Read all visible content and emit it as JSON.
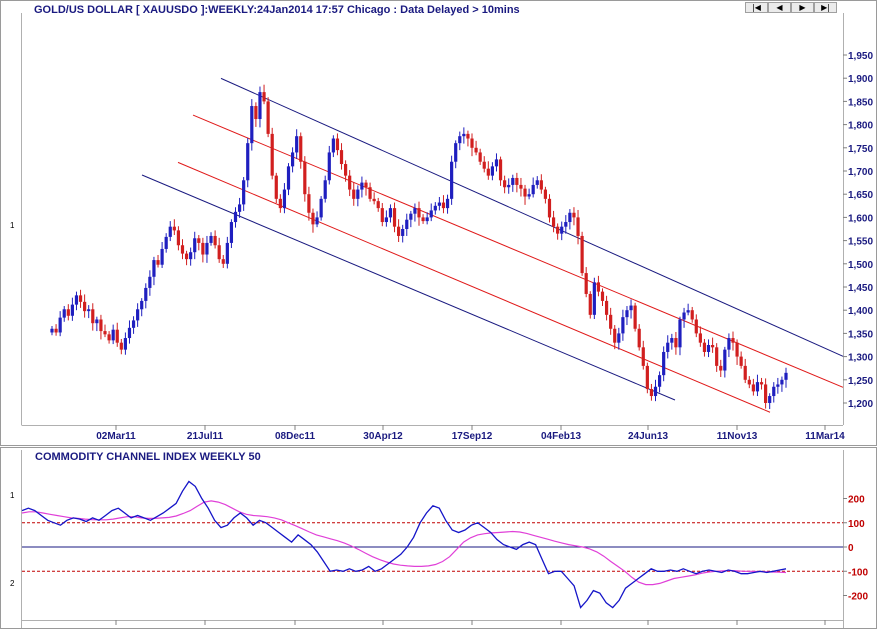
{
  "header": {
    "title": "GOLD/US DOLLAR [ XAUUSDO ]:WEEKLY:24Jan2014 17:57 Chicago : Data Delayed > 10mins",
    "pane_number": "1",
    "nav_buttons": [
      "|◀",
      "◀",
      "▶",
      "▶|"
    ]
  },
  "indicator": {
    "title": "COMMODITY CHANNEL INDEX WEEKLY 50",
    "pane_numbers": [
      "1",
      "2"
    ]
  },
  "colors": {
    "up": "#1f1fbf",
    "down": "#d11f1f",
    "channel_outer": "#1a1a80",
    "channel_inner": "#e01a1a",
    "cci_line": "#1515c8",
    "cci_signal": "#e040d8",
    "levels": "#c00000"
  },
  "chart_data": [
    {
      "type": "candlestick",
      "title": "GOLD/US DOLLAR [ XAUUSDO ]:WEEKLY:24Jan2014 17:57 Chicago : Data Delayed > 10mins",
      "x_tick_labels": [
        "02Mar11",
        "21Jul11",
        "08Dec11",
        "30Apr12",
        "17Sep12",
        "04Feb13",
        "24Jun13",
        "11Nov13",
        "11Mar14"
      ],
      "y_tick_labels": [
        "1,950",
        "1,900",
        "1,850",
        "1,800",
        "1,750",
        "1,700",
        "1,650",
        "1,600",
        "1,550",
        "1,500",
        "1,450",
        "1,400",
        "1,350",
        "1,300",
        "1,250",
        "1,200"
      ],
      "ylim": [
        1175,
        1960
      ],
      "grid": false,
      "closes": [
        1360,
        1352,
        1384,
        1402,
        1388,
        1412,
        1432,
        1418,
        1398,
        1402,
        1372,
        1380,
        1355,
        1348,
        1335,
        1358,
        1330,
        1315,
        1340,
        1362,
        1378,
        1402,
        1420,
        1448,
        1472,
        1508,
        1498,
        1532,
        1558,
        1580,
        1572,
        1540,
        1522,
        1510,
        1525,
        1555,
        1545,
        1520,
        1545,
        1560,
        1540,
        1510,
        1500,
        1545,
        1590,
        1612,
        1628,
        1680,
        1760,
        1840,
        1812,
        1870,
        1850,
        1780,
        1690,
        1640,
        1620,
        1660,
        1710,
        1740,
        1775,
        1720,
        1650,
        1610,
        1585,
        1600,
        1640,
        1680,
        1740,
        1770,
        1745,
        1715,
        1690,
        1660,
        1640,
        1660,
        1675,
        1665,
        1640,
        1635,
        1620,
        1590,
        1600,
        1620,
        1580,
        1560,
        1575,
        1595,
        1608,
        1620,
        1600,
        1592,
        1600,
        1615,
        1625,
        1632,
        1620,
        1640,
        1720,
        1760,
        1775,
        1780,
        1770,
        1750,
        1740,
        1720,
        1705,
        1690,
        1710,
        1725,
        1680,
        1665,
        1670,
        1685,
        1670,
        1662,
        1645,
        1650,
        1670,
        1680,
        1660,
        1640,
        1600,
        1580,
        1565,
        1580,
        1590,
        1610,
        1600,
        1560,
        1480,
        1435,
        1390,
        1460,
        1440,
        1420,
        1390,
        1360,
        1330,
        1350,
        1385,
        1400,
        1410,
        1360,
        1320,
        1280,
        1230,
        1215,
        1235,
        1260,
        1310,
        1330,
        1340,
        1320,
        1380,
        1395,
        1400,
        1380,
        1350,
        1330,
        1310,
        1325,
        1320,
        1280,
        1270,
        1315,
        1340,
        1330,
        1300,
        1280,
        1250,
        1240,
        1225,
        1245,
        1240,
        1200,
        1215,
        1235,
        1240,
        1250,
        1265
      ],
      "channel_lines": [
        {
          "name": "upper channel",
          "from": [
            "21Jul11",
            1915
          ],
          "to": [
            "11Mar14",
            1318
          ]
        },
        {
          "name": "upper inner channel",
          "from": [
            "02Mar11",
            1890
          ],
          "to": [
            "11Mar14",
            1250
          ]
        },
        {
          "name": "lower inner channel",
          "from": [
            "02Mar11",
            1775
          ],
          "to": [
            "11Mar14",
            1130
          ]
        },
        {
          "name": "lower channel",
          "from": [
            "02Mar11",
            1715
          ],
          "to": [
            "11Mar14",
            1070
          ]
        }
      ]
    },
    {
      "type": "line",
      "title": "COMMODITY CHANNEL INDEX WEEKLY 50",
      "y_tick_labels": [
        "200",
        "100",
        "0",
        "-100",
        "-200"
      ],
      "ylim": [
        -330,
        300
      ],
      "reference_levels": [
        100,
        0,
        -100
      ],
      "series": [
        {
          "values": [
            150,
            160,
            150,
            130,
            110,
            100,
            90,
            110,
            120,
            115,
            105,
            120,
            110,
            130,
            150,
            160,
            140,
            120,
            130,
            120,
            110,
            125,
            140,
            160,
            180,
            230,
            270,
            250,
            200,
            160,
            110,
            80,
            90,
            120,
            140,
            120,
            90,
            110,
            100,
            80,
            60,
            40,
            20,
            50,
            30,
            10,
            -20,
            -60,
            -100,
            -95,
            -100,
            -90,
            -100,
            -95,
            -80,
            -100,
            -90,
            -70,
            -50,
            -30,
            0,
            40,
            100,
            140,
            170,
            160,
            110,
            70,
            60,
            70,
            90,
            100,
            80,
            60,
            30,
            10,
            0,
            -10,
            10,
            20,
            10,
            -50,
            -110,
            -100,
            -100,
            -130,
            -160,
            -250,
            -220,
            -180,
            -190,
            -230,
            -250,
            -220,
            -170,
            -150,
            -130,
            -110,
            -90,
            -100,
            -100,
            -95,
            -100,
            -90,
            -100,
            -110,
            -100,
            -95,
            -100,
            -105,
            -95,
            -100,
            -110,
            -110,
            -105,
            -100,
            -105,
            -100,
            -95,
            -90
          ]
        },
        {
          "values": [
            140,
            145,
            145,
            140,
            135,
            130,
            125,
            120,
            118,
            115,
            113,
            112,
            112,
            115,
            120,
            125,
            125,
            120,
            118,
            118,
            120,
            122,
            128,
            138,
            150,
            168,
            185,
            190,
            185,
            175,
            160,
            145,
            135,
            130,
            128,
            125,
            120,
            112,
            100,
            88,
            75,
            62,
            50,
            42,
            34,
            26,
            16,
            4,
            -10,
            -25,
            -40,
            -52,
            -62,
            -70,
            -75,
            -78,
            -80,
            -80,
            -78,
            -72,
            -60,
            -40,
            -10,
            20,
            38,
            50,
            55,
            58,
            60,
            62,
            64,
            62,
            56,
            48,
            40,
            32,
            24,
            17,
            10,
            5,
            0,
            -8,
            -20,
            -38,
            -60,
            -80,
            -100,
            -125,
            -145,
            -155,
            -155,
            -150,
            -140,
            -130,
            -125,
            -120,
            -115,
            -108,
            -103,
            -100,
            -98,
            -97,
            -98,
            -100,
            -100,
            -101,
            -102,
            -103,
            -104,
            -105
          ]
        }
      ]
    }
  ]
}
